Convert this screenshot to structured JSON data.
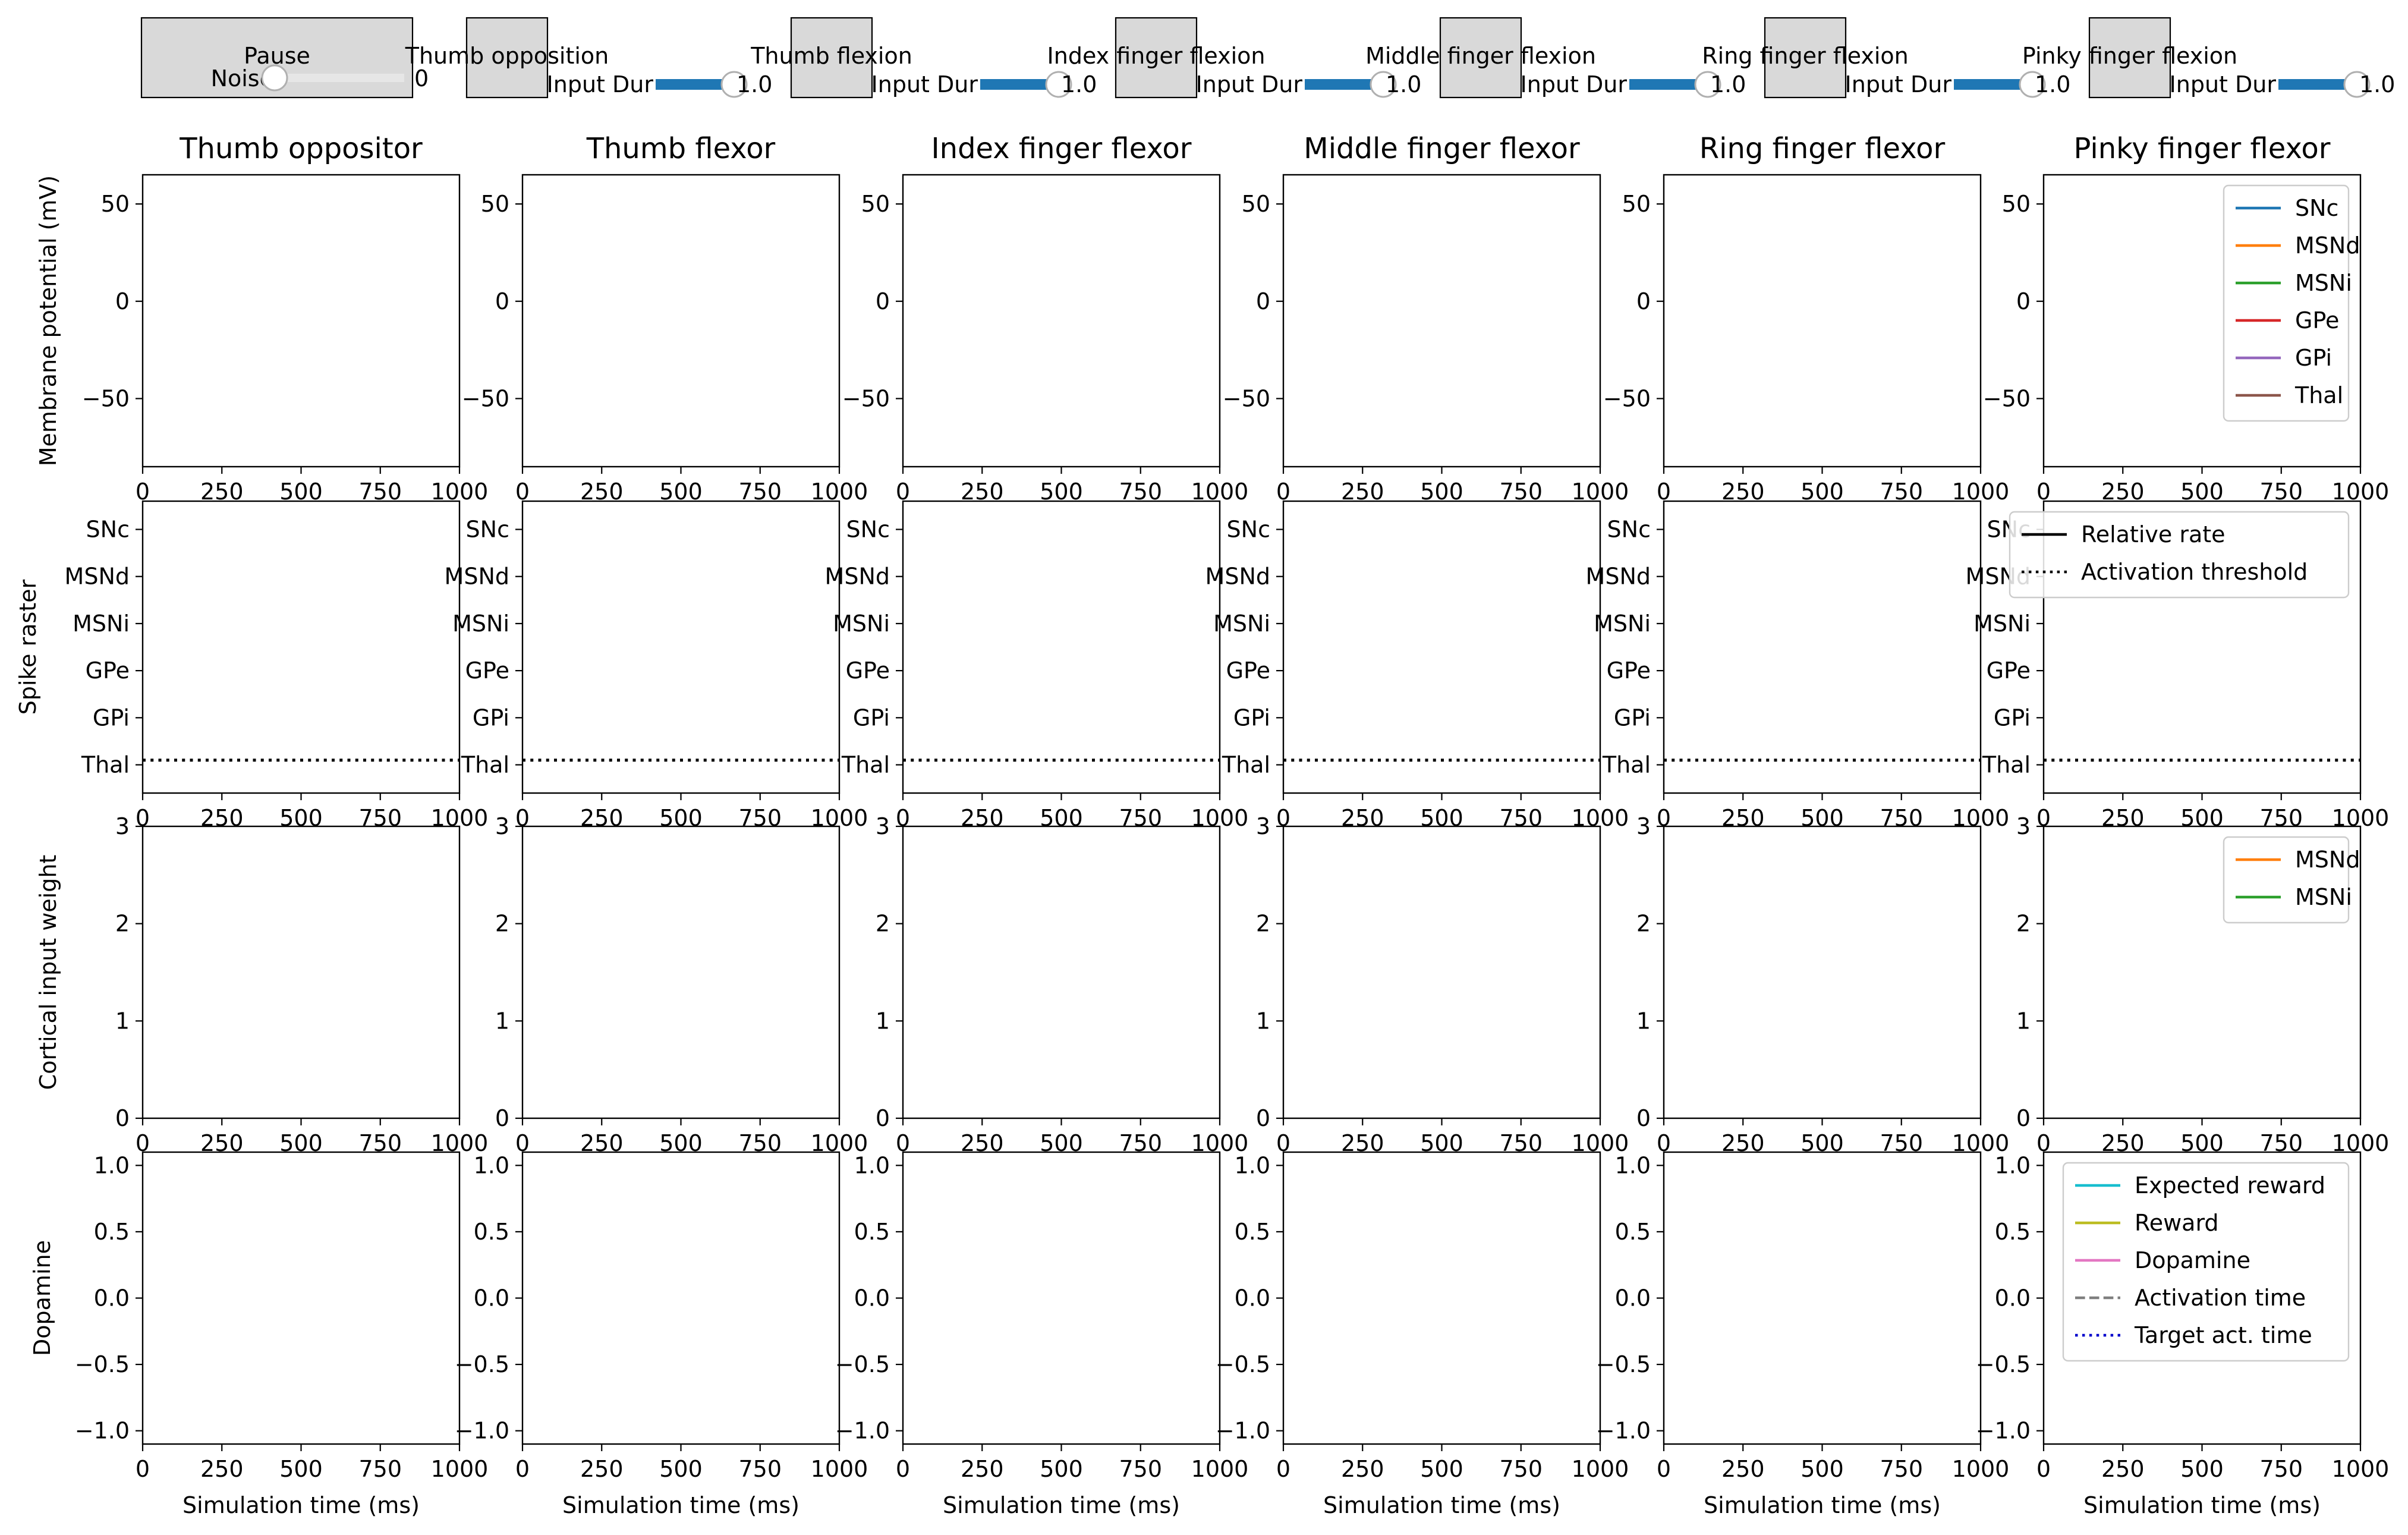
{
  "controls": {
    "pause_label": "Pause",
    "noise": {
      "label": "Noise",
      "value_text": "0",
      "value": 0
    },
    "movements": [
      {
        "button_label": "Thumb opposition",
        "slider_label": "Input Dur",
        "value_text": "1.0",
        "value": 1.0
      },
      {
        "button_label": "Thumb flexion",
        "slider_label": "Input Dur",
        "value_text": "1.0",
        "value": 1.0
      },
      {
        "button_label": "Index finger flexion",
        "slider_label": "Input Dur",
        "value_text": "1.0",
        "value": 1.0
      },
      {
        "button_label": "Middle finger flexion",
        "slider_label": "Input Dur",
        "value_text": "1.0",
        "value": 1.0
      },
      {
        "button_label": "Ring finger flexion",
        "slider_label": "Input Dur",
        "value_text": "1.0",
        "value": 1.0
      },
      {
        "button_label": "Pinky finger flexion",
        "slider_label": "Input Dur",
        "value_text": "1.0",
        "value": 1.0
      }
    ],
    "colors": {
      "button_face": "#d9d9d9",
      "slider_fill": "#1f77b4",
      "slider_track": "#e6e6e6"
    }
  },
  "chart_data": {
    "type": "line",
    "columns": [
      "Thumb oppositor",
      "Thumb flexor",
      "Index finger flexor",
      "Middle finger flexor",
      "Ring finger flexor",
      "Pinky finger flexor"
    ],
    "x": {
      "label": "Simulation time (ms)",
      "range": [
        0,
        1000
      ],
      "ticks": [
        0,
        250,
        500,
        750,
        1000
      ]
    },
    "rows": [
      {
        "id": "membrane",
        "ylabel": "Membrane potential (mV)",
        "yrange": [
          -85,
          65
        ],
        "yticks": [
          50,
          0,
          -50
        ],
        "ytick_labels": [
          "50",
          "0",
          "−50"
        ],
        "legend": {
          "location": "upper-right",
          "column": 5,
          "entries": [
            {
              "label": "SNc",
              "color": "#1f77b4",
              "style": "solid"
            },
            {
              "label": "MSNd",
              "color": "#ff7f0e",
              "style": "solid"
            },
            {
              "label": "MSNi",
              "color": "#2ca02c",
              "style": "solid"
            },
            {
              "label": "GPe",
              "color": "#d62728",
              "style": "solid"
            },
            {
              "label": "GPi",
              "color": "#9467bd",
              "style": "solid"
            },
            {
              "label": "Thal",
              "color": "#8c564b",
              "style": "solid"
            }
          ]
        }
      },
      {
        "id": "raster",
        "ylabel": "Spike raster",
        "yrange": [
          0,
          6.2
        ],
        "yticks": [
          5.6,
          4.6,
          3.6,
          2.6,
          1.6,
          0.6
        ],
        "ytick_labels": [
          "SNc",
          "MSNd",
          "MSNi",
          "GPe",
          "GPi",
          "Thal"
        ],
        "threshold_line": {
          "y": 0.7,
          "color": "#000000",
          "style": "dotted"
        },
        "legend": {
          "location": "upper-right",
          "column": 5,
          "entries": [
            {
              "label": "Relative rate",
              "color": "#000000",
              "style": "solid"
            },
            {
              "label": "Activation threshold",
              "color": "#000000",
              "style": "dotted"
            }
          ]
        }
      },
      {
        "id": "weights",
        "ylabel": "Cortical input weight",
        "yrange": [
          0,
          3
        ],
        "yticks": [
          3,
          2,
          1,
          0
        ],
        "ytick_labels": [
          "3",
          "2",
          "1",
          "0"
        ],
        "legend": {
          "location": "upper-right",
          "column": 5,
          "entries": [
            {
              "label": "MSNd",
              "color": "#ff7f0e",
              "style": "solid"
            },
            {
              "label": "MSNi",
              "color": "#2ca02c",
              "style": "solid"
            }
          ]
        }
      },
      {
        "id": "dopamine",
        "ylabel": "Dopamine",
        "yrange": [
          -1.1,
          1.1
        ],
        "yticks": [
          1.0,
          0.5,
          0.0,
          -0.5,
          -1.0
        ],
        "ytick_labels": [
          "1.0",
          "0.5",
          "0.0",
          "−0.5",
          "−1.0"
        ],
        "legend": {
          "location": "upper-right",
          "column": 5,
          "entries": [
            {
              "label": "Expected reward",
              "color": "#17becf",
              "style": "solid"
            },
            {
              "label": "Reward",
              "color": "#bcbd22",
              "style": "solid"
            },
            {
              "label": "Dopamine",
              "color": "#e377c2",
              "style": "solid"
            },
            {
              "label": "Activation time",
              "color": "#7f7f7f",
              "style": "dashed"
            },
            {
              "label": "Target act. time",
              "color": "#0000cc",
              "style": "dotted"
            }
          ]
        }
      }
    ],
    "grid": false
  }
}
